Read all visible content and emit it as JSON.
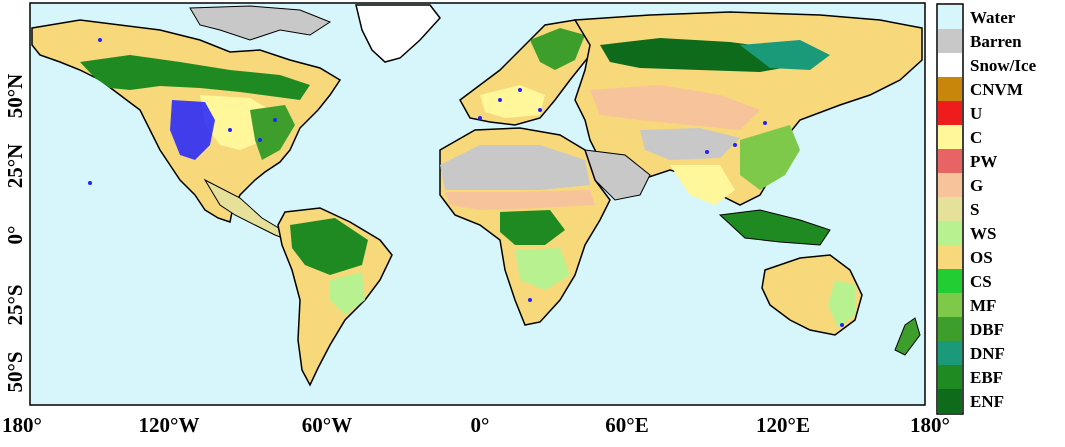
{
  "map": {
    "background_color": "#d6f6fb",
    "lat_labels": [
      "50°N",
      "25°N",
      "0°",
      "25°S",
      "50°S"
    ],
    "lon_labels": [
      "180°",
      "120°W",
      "60°W",
      "0°",
      "60°E",
      "120°E",
      "180°"
    ],
    "site_marker_color": "#2222ff"
  },
  "legend": {
    "items": [
      {
        "label": "Water",
        "color": "#d6f6fb"
      },
      {
        "label": "Barren",
        "color": "#c8c8c8"
      },
      {
        "label": "Snow/Ice",
        "color": "#ffffff"
      },
      {
        "label": "CNVM",
        "color": "#c8860a"
      },
      {
        "label": "U",
        "color": "#ee1c1c"
      },
      {
        "label": "C",
        "color": "#fff79a"
      },
      {
        "label": "PW",
        "color": "#e86464"
      },
      {
        "label": "G",
        "color": "#f7c39b"
      },
      {
        "label": "S",
        "color": "#e5e09a"
      },
      {
        "label": "WS",
        "color": "#b8f290"
      },
      {
        "label": "OS",
        "color": "#f7d87a"
      },
      {
        "label": "CS",
        "color": "#22cc33"
      },
      {
        "label": "MF",
        "color": "#7ec84a"
      },
      {
        "label": "DBF",
        "color": "#3d9e2c"
      },
      {
        "label": "DNF",
        "color": "#1b9a7a"
      },
      {
        "label": "EBF",
        "color": "#1f8a22"
      },
      {
        "label": "ENF",
        "color": "#0e6b1c"
      }
    ]
  }
}
